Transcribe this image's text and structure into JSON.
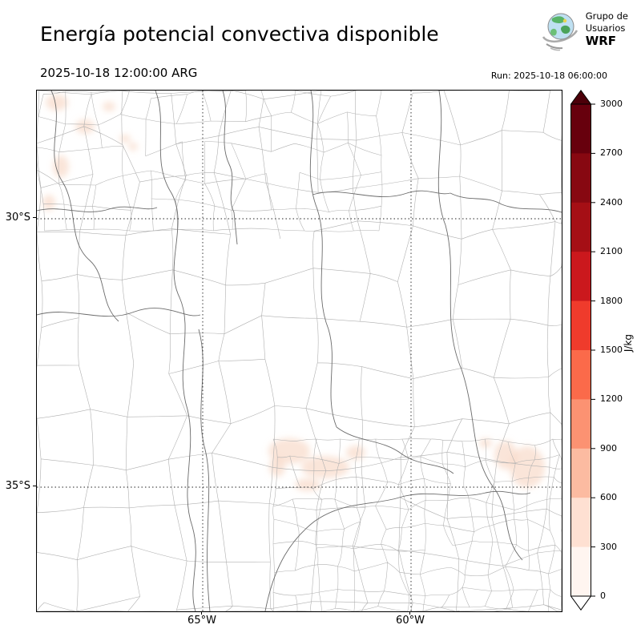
{
  "header": {
    "title": "Energía potencial convectiva disponible",
    "valid_time": "2025-10-18 12:00:00 ARG",
    "run_label": "Run: 2025-10-18 06:00:00"
  },
  "logo": {
    "line1": "Grupo de",
    "line2": "Usuarios",
    "line3": "WRF"
  },
  "axes": {
    "x_ticks": [
      "65°W",
      "60°W"
    ],
    "y_ticks": [
      "30°S",
      "35°S"
    ]
  },
  "colorbar": {
    "label": "J/kg",
    "min": 0,
    "max": 3000,
    "ticks": [
      0,
      300,
      600,
      900,
      1200,
      1500,
      1800,
      2100,
      2400,
      2700,
      3000
    ],
    "segment_colors": [
      "#fff5f0",
      "#fee0d2",
      "#fcbba1",
      "#fc9272",
      "#fb6a4a",
      "#ef3b2c",
      "#cb181d",
      "#a50f15",
      "#870811",
      "#67000d"
    ],
    "under_arrow_color": "#ffffff",
    "over_arrow_color": "#4c0009"
  },
  "map_style": {
    "department_boundary_color": "#b0b0b0",
    "province_boundary_color": "#6b6b6b",
    "gridline_color": "#222222",
    "cape_patch_color": "#f7d3c0"
  }
}
